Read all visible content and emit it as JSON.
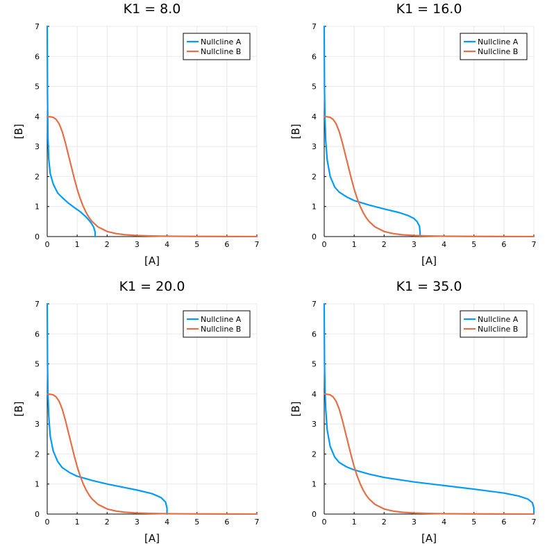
{
  "chart_data": [
    {
      "type": "line",
      "title": "K1 = 8.0",
      "xlabel": "[A]",
      "ylabel": "[B]",
      "xlim": [
        0,
        7
      ],
      "ylim": [
        0,
        7
      ],
      "xticks": [
        "0",
        "1",
        "2",
        "3",
        "4",
        "5",
        "6",
        "7"
      ],
      "yticks": [
        "0",
        "1",
        "2",
        "3",
        "4",
        "5",
        "6",
        "7"
      ],
      "grid": true,
      "legend_position": "top-right",
      "series": [
        {
          "name": "Nullcline A",
          "color": "#009AFA",
          "x": [
            0.0,
            0.01,
            0.025,
            0.05,
            0.1,
            0.2,
            0.35,
            0.5,
            0.7,
            0.9,
            1.1,
            1.3,
            1.45,
            1.55,
            1.6,
            1.6
          ],
          "y": [
            7.0,
            4.7,
            3.3,
            2.6,
            2.1,
            1.75,
            1.45,
            1.3,
            1.12,
            0.97,
            0.83,
            0.65,
            0.48,
            0.32,
            0.15,
            0.0
          ]
        },
        {
          "name": "Nullcline B",
          "color": "#E26F46",
          "x": [
            0.0,
            0.1,
            0.2,
            0.3,
            0.4,
            0.5,
            0.6,
            0.7,
            0.8,
            0.9,
            1.0,
            1.1,
            1.2,
            1.3,
            1.4,
            1.5,
            1.7,
            2.0,
            2.3,
            2.6,
            3.0,
            3.5,
            4.0,
            5.0,
            6.0,
            7.0
          ],
          "y": [
            4.0,
            3.99,
            3.97,
            3.9,
            3.75,
            3.5,
            3.15,
            2.75,
            2.35,
            1.95,
            1.58,
            1.27,
            1.01,
            0.8,
            0.63,
            0.5,
            0.32,
            0.17,
            0.1,
            0.06,
            0.035,
            0.02,
            0.012,
            0.005,
            0.002,
            0.001
          ]
        }
      ]
    },
    {
      "type": "line",
      "title": "K1 = 16.0",
      "xlabel": "[A]",
      "ylabel": "[B]",
      "xlim": [
        0,
        7
      ],
      "ylim": [
        0,
        7
      ],
      "xticks": [
        "0",
        "1",
        "2",
        "3",
        "4",
        "5",
        "6",
        "7"
      ],
      "yticks": [
        "0",
        "1",
        "2",
        "3",
        "4",
        "5",
        "6",
        "7"
      ],
      "grid": true,
      "legend_position": "top-right",
      "series": [
        {
          "name": "Nullcline A",
          "color": "#009AFA",
          "x": [
            0.0,
            0.01,
            0.025,
            0.05,
            0.1,
            0.2,
            0.35,
            0.5,
            0.75,
            1.0,
            1.5,
            2.0,
            2.5,
            2.8,
            3.0,
            3.1,
            3.18,
            3.2,
            3.2
          ],
          "y": [
            7.0,
            4.9,
            3.9,
            3.2,
            2.55,
            2.0,
            1.65,
            1.48,
            1.32,
            1.2,
            1.05,
            0.92,
            0.8,
            0.7,
            0.6,
            0.5,
            0.35,
            0.15,
            0.0
          ]
        },
        {
          "name": "Nullcline B",
          "color": "#E26F46",
          "x": [
            0.0,
            0.1,
            0.2,
            0.3,
            0.4,
            0.5,
            0.6,
            0.7,
            0.8,
            0.9,
            1.0,
            1.1,
            1.2,
            1.3,
            1.4,
            1.5,
            1.7,
            2.0,
            2.3,
            2.6,
            3.0,
            3.5,
            4.0,
            5.0,
            6.0,
            7.0
          ],
          "y": [
            4.0,
            3.99,
            3.97,
            3.9,
            3.75,
            3.5,
            3.15,
            2.75,
            2.35,
            1.95,
            1.58,
            1.27,
            1.01,
            0.8,
            0.63,
            0.5,
            0.32,
            0.17,
            0.1,
            0.06,
            0.035,
            0.02,
            0.012,
            0.005,
            0.002,
            0.001
          ]
        }
      ]
    },
    {
      "type": "line",
      "title": "K1 = 20.0",
      "xlabel": "[A]",
      "ylabel": "[B]",
      "xlim": [
        0,
        7
      ],
      "ylim": [
        0,
        7
      ],
      "xticks": [
        "0",
        "1",
        "2",
        "3",
        "4",
        "5",
        "6",
        "7"
      ],
      "yticks": [
        "0",
        "1",
        "2",
        "3",
        "4",
        "5",
        "6",
        "7"
      ],
      "grid": true,
      "legend_position": "top-right",
      "series": [
        {
          "name": "Nullcline A",
          "color": "#009AFA",
          "x": [
            0.0,
            0.01,
            0.025,
            0.05,
            0.1,
            0.2,
            0.35,
            0.5,
            0.75,
            1.0,
            1.5,
            2.0,
            2.5,
            3.0,
            3.5,
            3.8,
            3.95,
            4.0,
            4.0
          ],
          "y": [
            7.0,
            5.0,
            4.0,
            3.3,
            2.6,
            2.1,
            1.75,
            1.55,
            1.38,
            1.26,
            1.12,
            1.0,
            0.9,
            0.8,
            0.68,
            0.55,
            0.4,
            0.2,
            0.0
          ]
        },
        {
          "name": "Nullcline B",
          "color": "#E26F46",
          "x": [
            0.0,
            0.1,
            0.2,
            0.3,
            0.4,
            0.5,
            0.6,
            0.7,
            0.8,
            0.9,
            1.0,
            1.1,
            1.2,
            1.3,
            1.4,
            1.5,
            1.7,
            2.0,
            2.3,
            2.6,
            3.0,
            3.5,
            4.0,
            5.0,
            6.0,
            7.0
          ],
          "y": [
            4.0,
            3.99,
            3.97,
            3.9,
            3.75,
            3.5,
            3.15,
            2.75,
            2.35,
            1.95,
            1.58,
            1.27,
            1.01,
            0.8,
            0.63,
            0.5,
            0.32,
            0.17,
            0.1,
            0.06,
            0.035,
            0.02,
            0.012,
            0.005,
            0.002,
            0.001
          ]
        }
      ]
    },
    {
      "type": "line",
      "title": "K1 = 35.0",
      "xlabel": "[A]",
      "ylabel": "[B]",
      "xlim": [
        0,
        7
      ],
      "ylim": [
        0,
        7
      ],
      "xticks": [
        "0",
        "1",
        "2",
        "3",
        "4",
        "5",
        "6",
        "7"
      ],
      "yticks": [
        "0",
        "1",
        "2",
        "3",
        "4",
        "5",
        "6",
        "7"
      ],
      "grid": true,
      "legend_position": "top-right",
      "series": [
        {
          "name": "Nullcline A",
          "color": "#009AFA",
          "x": [
            0.0,
            0.01,
            0.025,
            0.05,
            0.1,
            0.2,
            0.35,
            0.5,
            0.75,
            1.0,
            1.5,
            2.0,
            3.0,
            4.0,
            5.0,
            6.0,
            6.5,
            6.8,
            6.95,
            7.0,
            7.0
          ],
          "y": [
            7.0,
            5.0,
            4.2,
            3.5,
            2.8,
            2.25,
            1.9,
            1.72,
            1.57,
            1.47,
            1.33,
            1.22,
            1.07,
            0.95,
            0.83,
            0.7,
            0.6,
            0.5,
            0.38,
            0.2,
            0.0
          ]
        },
        {
          "name": "Nullcline B",
          "color": "#E26F46",
          "x": [
            0.0,
            0.1,
            0.2,
            0.3,
            0.4,
            0.5,
            0.6,
            0.7,
            0.8,
            0.9,
            1.0,
            1.1,
            1.2,
            1.3,
            1.4,
            1.5,
            1.7,
            2.0,
            2.3,
            2.6,
            3.0,
            3.5,
            4.0,
            5.0,
            6.0,
            7.0
          ],
          "y": [
            4.0,
            3.99,
            3.97,
            3.9,
            3.75,
            3.5,
            3.15,
            2.75,
            2.35,
            1.95,
            1.58,
            1.27,
            1.01,
            0.8,
            0.63,
            0.5,
            0.32,
            0.17,
            0.1,
            0.06,
            0.035,
            0.02,
            0.012,
            0.005,
            0.002,
            0.001
          ]
        }
      ]
    }
  ]
}
